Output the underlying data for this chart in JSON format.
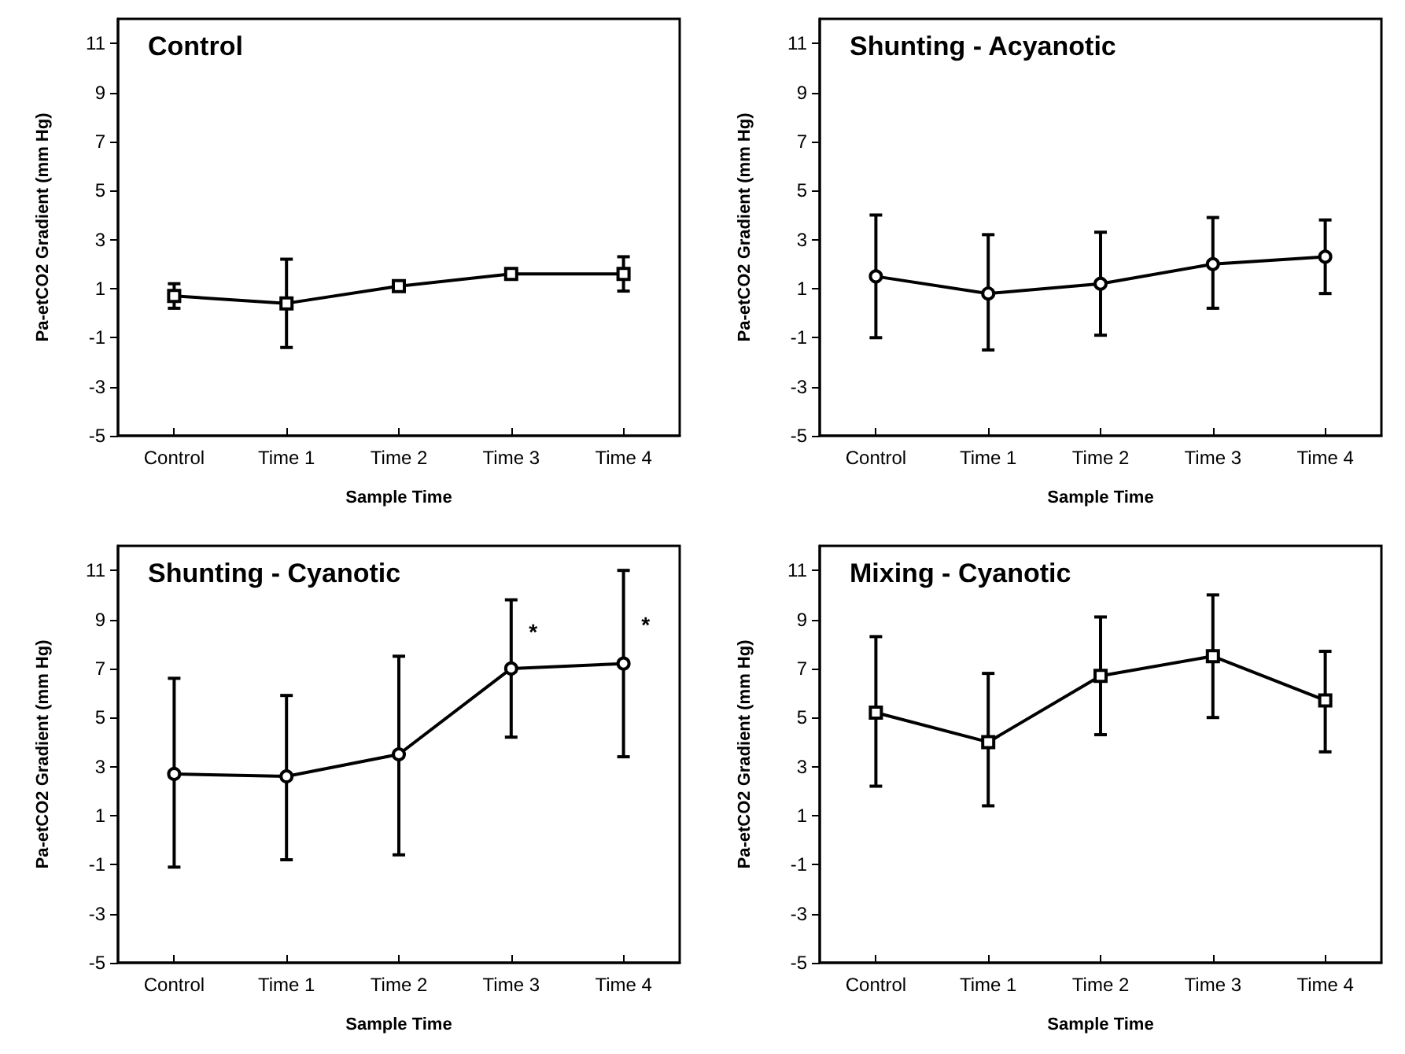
{
  "chart_data": [
    {
      "type": "line",
      "title": "Control",
      "xlabel": "Sample Time",
      "ylabel": "Pa-etCO2 Gradient (mm Hg)",
      "categories": [
        "Control",
        "Time 1",
        "Time 2",
        "Time 3",
        "Time 4"
      ],
      "ylim": [
        -5,
        12
      ],
      "yticks": [
        -5,
        -3,
        -1,
        1,
        3,
        5,
        7,
        9,
        11
      ],
      "marker": "square",
      "line_style": "solid",
      "series": [
        {
          "color": "#000000",
          "values": [
            0.7,
            0.4,
            1.1,
            1.6,
            1.6
          ],
          "errors": [
            [
              0.2,
              1.2
            ],
            [
              -1.4,
              2.2
            ],
            null,
            null,
            [
              0.9,
              2.3
            ]
          ]
        }
      ]
    },
    {
      "type": "line",
      "title": "Shunting - Acyanotic",
      "xlabel": "Sample Time",
      "ylabel": "Pa-etCO2 Gradient (mm Hg)",
      "categories": [
        "Control",
        "Time 1",
        "Time 2",
        "Time 3",
        "Time 4"
      ],
      "ylim": [
        -5,
        12
      ],
      "yticks": [
        -5,
        -3,
        -1,
        1,
        3,
        5,
        7,
        9,
        11
      ],
      "marker": "circle",
      "line_style": "solid",
      "series": [
        {
          "color": "#000000",
          "values": [
            1.5,
            0.8,
            1.2,
            2.0,
            2.3
          ],
          "errors": [
            [
              -1.0,
              4.0
            ],
            [
              -1.5,
              3.2
            ],
            [
              -0.9,
              3.3
            ],
            [
              0.2,
              3.9
            ],
            [
              0.8,
              3.8
            ]
          ]
        }
      ]
    },
    {
      "type": "line",
      "title": "Shunting - Cyanotic",
      "xlabel": "Sample Time",
      "ylabel": "Pa-etCO2 Gradient (mm Hg)",
      "categories": [
        "Control",
        "Time 1",
        "Time 2",
        "Time 3",
        "Time 4"
      ],
      "ylim": [
        -5,
        12
      ],
      "yticks": [
        -5,
        -3,
        -1,
        1,
        3,
        5,
        7,
        9,
        11
      ],
      "marker": "circle",
      "line_style": "solid",
      "series": [
        {
          "color": "#000000",
          "values": [
            2.7,
            2.6,
            3.5,
            7.0,
            7.2
          ],
          "errors": [
            [
              -1.1,
              6.6
            ],
            [
              -0.8,
              5.9
            ],
            [
              -0.6,
              7.5
            ],
            [
              4.2,
              9.8
            ],
            [
              3.4,
              11.0
            ]
          ]
        }
      ],
      "annotations": [
        {
          "text": "*",
          "x": "Time 3",
          "y": 8.5
        },
        {
          "text": "*",
          "x": "Time 4",
          "y": 8.8
        }
      ]
    },
    {
      "type": "line",
      "title": "Mixing - Cyanotic",
      "xlabel": "Sample Time",
      "ylabel": "Pa-etCO2 Gradient (mm Hg)",
      "categories": [
        "Control",
        "Time 1",
        "Time 2",
        "Time 3",
        "Time 4"
      ],
      "ylim": [
        -5,
        12
      ],
      "yticks": [
        -5,
        -3,
        -1,
        1,
        3,
        5,
        7,
        9,
        11
      ],
      "marker": "square",
      "line_style": "solid",
      "series": [
        {
          "color": "#000000",
          "values": [
            5.2,
            4.0,
            6.7,
            7.5,
            5.7
          ],
          "errors": [
            [
              2.2,
              8.3
            ],
            [
              1.4,
              6.8
            ],
            [
              4.3,
              9.1
            ],
            [
              5.0,
              10.0
            ],
            [
              3.6,
              7.7
            ]
          ]
        }
      ]
    }
  ]
}
